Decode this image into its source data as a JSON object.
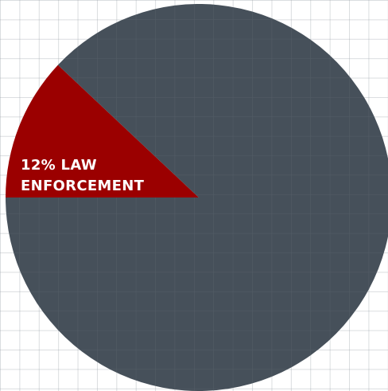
{
  "chart_data": {
    "type": "pie",
    "slices": [
      {
        "label_lines": [
          "12% LAW",
          "ENFORCEMENT"
        ],
        "value": 12,
        "color": "#9b0000"
      },
      {
        "label_lines": [],
        "value": 88,
        "color": "#46505a"
      }
    ],
    "grid": true,
    "legend": "none"
  },
  "colors": {
    "background": "#ffffff",
    "grid_line": "#969ea5",
    "slice_grid_line": "#5e6871"
  }
}
